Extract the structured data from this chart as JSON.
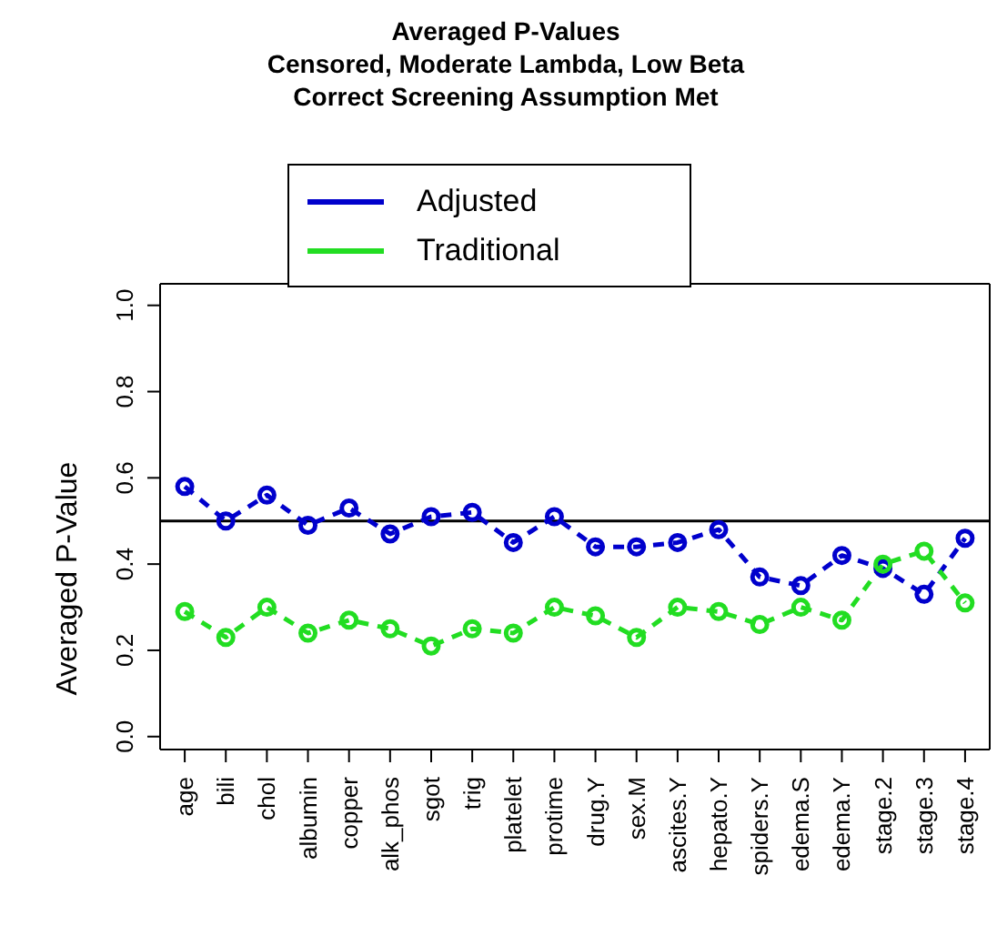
{
  "chart_data": {
    "type": "line",
    "title": "Averaged P-Values\nCensored, Moderate Lambda, Low Beta\nCorrect Screening Assumption Met",
    "ylabel": "Averaged P-Value",
    "categories": [
      "age",
      "bili",
      "chol",
      "albumin",
      "copper",
      "alk_phos",
      "sgot",
      "trig",
      "platelet",
      "protime",
      "drug.Y",
      "sex.M",
      "ascites.Y",
      "hepato.Y",
      "spiders.Y",
      "edema.S",
      "edema.Y",
      "stage.2",
      "stage.3",
      "stage.4"
    ],
    "series": [
      {
        "name": "Adjusted",
        "color": "#0000cc",
        "values": [
          0.58,
          0.5,
          0.56,
          0.49,
          0.53,
          0.47,
          0.51,
          0.52,
          0.45,
          0.51,
          0.44,
          0.44,
          0.45,
          0.48,
          0.37,
          0.35,
          0.42,
          0.39,
          0.33,
          0.46
        ]
      },
      {
        "name": "Traditional",
        "color": "#22dd22",
        "values": [
          0.29,
          0.23,
          0.3,
          0.24,
          0.27,
          0.25,
          0.21,
          0.25,
          0.24,
          0.3,
          0.28,
          0.23,
          0.3,
          0.29,
          0.26,
          0.3,
          0.27,
          0.4,
          0.43,
          0.31
        ]
      }
    ],
    "ylim": [
      -0.03,
      1.05
    ],
    "yticks": [
      {
        "value": 0,
        "label": "0.0"
      },
      0.2,
      0.4,
      0.6,
      0.8,
      {
        "value": 1,
        "label": "1.0"
      }
    ],
    "ref_lines": [
      {
        "axis": "y",
        "value": 0.5,
        "color": "#000000"
      }
    ],
    "grid": false,
    "legend": "top",
    "marker": "circle",
    "line_style": "dashed"
  }
}
